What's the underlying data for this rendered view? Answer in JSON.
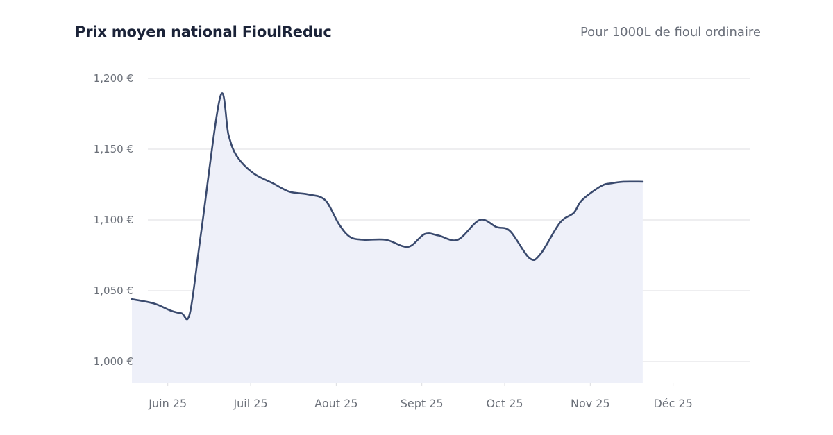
{
  "header": {
    "title": "Prix moyen national FioulReduc",
    "subtitle": "Pour 1000L de fioul ordinaire"
  },
  "colors": {
    "line": "#3a4a6e",
    "area": "#eef0f9",
    "grid": "#dcdde1",
    "text": "#6b7079"
  },
  "chart_data": {
    "type": "area",
    "title": "Prix moyen national FioulReduc",
    "subtitle": "Pour 1000L de fioul ordinaire",
    "xlabel": "",
    "ylabel": "",
    "ylim": [
      990,
      1205
    ],
    "yticks": [
      1000,
      1050,
      1100,
      1150,
      1200
    ],
    "ytick_labels": [
      "1,000 €",
      "1,050 €",
      "1,100 €",
      "1,150 €",
      "1,200 €"
    ],
    "xticks": [
      "2025-06-01",
      "2025-07-01",
      "2025-08-01",
      "2025-09-01",
      "2025-10-01",
      "2025-11-01",
      "2025-12-01"
    ],
    "xtick_labels": [
      "Juin 25",
      "Juil 25",
      "Aout 25",
      "Sept 25",
      "Oct 25",
      "Nov 25",
      "Déc 25"
    ],
    "xlim": [
      "2025-05-19",
      "2025-12-31"
    ],
    "grid": true,
    "legend": "none",
    "series": [
      {
        "x": [
          "2025-05-19",
          "2025-05-27",
          "2025-06-02",
          "2025-06-06",
          "2025-06-09",
          "2025-06-13",
          "2025-06-20",
          "2025-06-23",
          "2025-06-26",
          "2025-07-02",
          "2025-07-09",
          "2025-07-15",
          "2025-07-22",
          "2025-07-28",
          "2025-08-02",
          "2025-08-06",
          "2025-08-11",
          "2025-08-19",
          "2025-08-27",
          "2025-09-02",
          "2025-09-07",
          "2025-09-14",
          "2025-09-22",
          "2025-09-28",
          "2025-10-03",
          "2025-10-10",
          "2025-10-14",
          "2025-10-21",
          "2025-10-26",
          "2025-10-29",
          "2025-11-05",
          "2025-11-09",
          "2025-11-13",
          "2025-11-20"
        ],
        "y": [
          1044,
          1041,
          1036,
          1034,
          1034,
          1090,
          1187,
          1160,
          1145,
          1133,
          1126,
          1120,
          1118,
          1114,
          1097,
          1088,
          1086,
          1086,
          1081,
          1090,
          1089,
          1086,
          1100,
          1095,
          1092,
          1073,
          1076,
          1098,
          1105,
          1114,
          1124,
          1126,
          1127,
          1127
        ]
      }
    ]
  }
}
